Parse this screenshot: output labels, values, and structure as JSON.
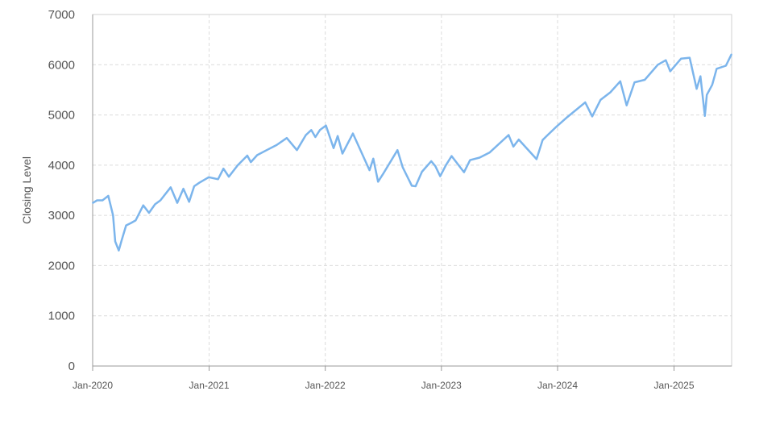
{
  "chart_data": {
    "type": "line",
    "ylabel": "Closing Level",
    "xlabel": "",
    "ylim": [
      0,
      7000
    ],
    "yticks": [
      0,
      1000,
      2000,
      3000,
      4000,
      5000,
      6000,
      7000
    ],
    "xlim": [
      "2020-01-01",
      "2025-07-01"
    ],
    "xticks": [
      {
        "date": "2020-01-01",
        "label": "Jan-2020"
      },
      {
        "date": "2021-01-01",
        "label": "Jan-2021"
      },
      {
        "date": "2022-01-01",
        "label": "Jan-2022"
      },
      {
        "date": "2023-01-01",
        "label": "Jan-2023"
      },
      {
        "date": "2024-01-01",
        "label": "Jan-2024"
      },
      {
        "date": "2025-01-01",
        "label": "Jan-2025"
      }
    ],
    "grid": true,
    "line_color": "#7cb5ec",
    "series": [
      {
        "x": [
          "2020-01-02",
          "2020-01-15",
          "2020-02-01",
          "2020-02-19",
          "2020-03-05",
          "2020-03-12",
          "2020-03-23",
          "2020-04-01",
          "2020-04-15",
          "2020-05-01",
          "2020-05-15",
          "2020-06-08",
          "2020-06-26",
          "2020-07-15",
          "2020-08-01",
          "2020-09-02",
          "2020-09-23",
          "2020-10-12",
          "2020-10-30",
          "2020-11-15",
          "2020-12-01",
          "2020-12-31",
          "2021-01-29",
          "2021-02-15",
          "2021-03-04",
          "2021-04-01",
          "2021-05-01",
          "2021-05-12",
          "2021-06-01",
          "2021-07-01",
          "2021-08-01",
          "2021-09-02",
          "2021-10-04",
          "2021-11-01",
          "2021-11-18",
          "2021-12-01",
          "2021-12-15",
          "2022-01-03",
          "2022-01-27",
          "2022-02-09",
          "2022-02-24",
          "2022-03-29",
          "2022-04-15",
          "2022-05-20",
          "2022-06-01",
          "2022-06-16",
          "2022-07-01",
          "2022-08-16",
          "2022-09-01",
          "2022-09-30",
          "2022-10-12",
          "2022-11-01",
          "2022-11-30",
          "2022-12-13",
          "2022-12-28",
          "2023-01-15",
          "2023-02-02",
          "2023-03-13",
          "2023-04-01",
          "2023-05-01",
          "2023-06-01",
          "2023-07-31",
          "2023-08-15",
          "2023-09-01",
          "2023-10-27",
          "2023-11-15",
          "2023-12-01",
          "2023-12-29",
          "2024-02-01",
          "2024-03-28",
          "2024-04-19",
          "2024-05-15",
          "2024-06-15",
          "2024-07-16",
          "2024-08-05",
          "2024-08-30",
          "2024-10-01",
          "2024-11-11",
          "2024-12-06",
          "2024-12-20",
          "2025-01-23",
          "2025-02-19",
          "2025-03-13",
          "2025-03-25",
          "2025-04-08",
          "2025-04-14",
          "2025-05-01",
          "2025-05-15",
          "2025-06-13",
          "2025-06-30"
        ],
        "values": [
          3250,
          3300,
          3300,
          3390,
          3000,
          2480,
          2300,
          2500,
          2800,
          2850,
          2900,
          3200,
          3050,
          3220,
          3300,
          3560,
          3250,
          3530,
          3270,
          3580,
          3650,
          3760,
          3720,
          3930,
          3770,
          4000,
          4190,
          4060,
          4200,
          4300,
          4400,
          4540,
          4300,
          4600,
          4700,
          4560,
          4700,
          4790,
          4340,
          4580,
          4230,
          4630,
          4390,
          3900,
          4130,
          3670,
          3820,
          4300,
          3960,
          3590,
          3580,
          3870,
          4080,
          3980,
          3780,
          4000,
          4180,
          3860,
          4100,
          4150,
          4250,
          4600,
          4370,
          4510,
          4120,
          4500,
          4600,
          4770,
          4960,
          5250,
          4970,
          5300,
          5450,
          5670,
          5190,
          5650,
          5700,
          6000,
          6090,
          5870,
          6120,
          6140,
          5520,
          5770,
          4980,
          5400,
          5600,
          5920,
          5980,
          6200
        ]
      }
    ]
  }
}
